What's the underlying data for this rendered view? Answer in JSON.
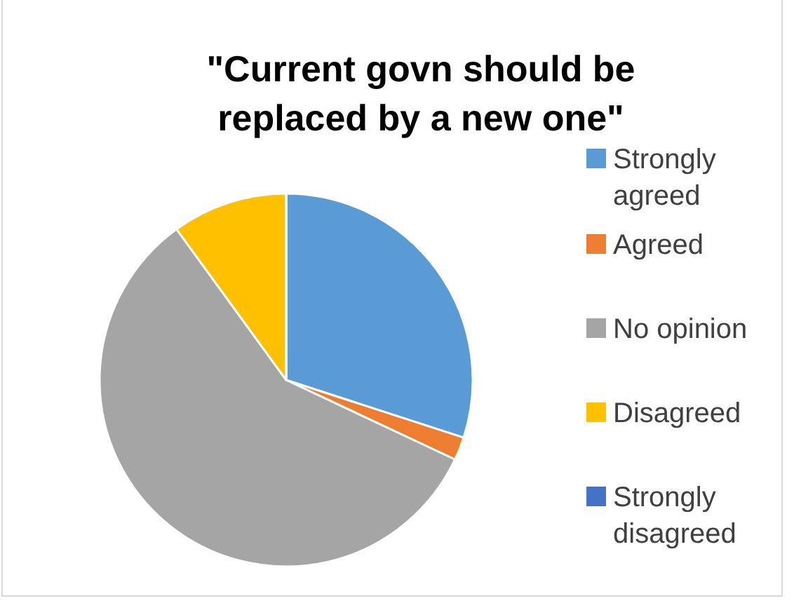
{
  "chart_data": {
    "type": "pie",
    "title": "\"Current govn should be replaced by a new one\"",
    "categories": [
      "Strongly agreed",
      "Agreed",
      "No opinion",
      "Disagreed",
      "Strongly disagreed"
    ],
    "values": [
      30,
      2,
      58,
      10,
      0
    ],
    "colors": [
      "#5b9bd5",
      "#ed7d31",
      "#a5a5a5",
      "#ffc000",
      "#4472c4"
    ],
    "legend": "right"
  }
}
